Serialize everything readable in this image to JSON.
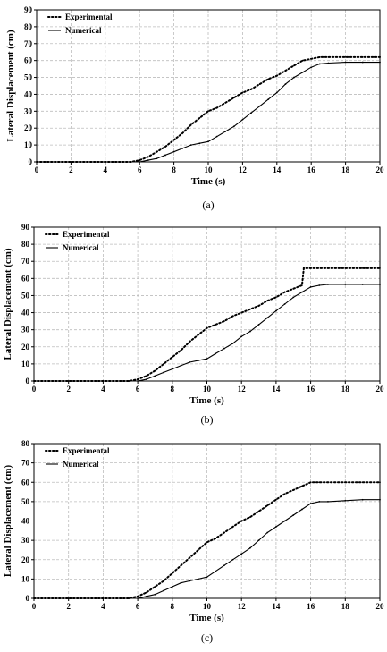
{
  "chart_data": [
    {
      "type": "line",
      "panel_label": "(a)",
      "xlabel": "Time (s)",
      "ylabel": "Lateral Displacement (cm)",
      "xlim": [
        0,
        20
      ],
      "ylim": [
        0,
        90
      ],
      "xticks": [
        0,
        2,
        4,
        6,
        8,
        10,
        12,
        14,
        16,
        18,
        20
      ],
      "yticks": [
        0,
        10,
        20,
        30,
        40,
        50,
        60,
        70,
        80,
        90
      ],
      "grid": true,
      "legend_position": "top-left",
      "series": [
        {
          "name": "Experimental",
          "style": "dotted",
          "x": [
            0,
            2,
            4,
            5.5,
            6,
            6.5,
            7,
            7.5,
            8,
            8.5,
            9,
            9.5,
            10,
            10.5,
            11,
            11.5,
            12,
            12.5,
            13,
            13.5,
            14,
            14.5,
            15,
            15.5,
            16,
            16.5,
            17,
            18,
            19,
            20
          ],
          "y": [
            0,
            0,
            0,
            0,
            1,
            3,
            6,
            9,
            13,
            17,
            22,
            26,
            30,
            32,
            35,
            38,
            41,
            43,
            46,
            49,
            51,
            54,
            57,
            60,
            61,
            62,
            62,
            62,
            62,
            62
          ]
        },
        {
          "name": "Numerical",
          "style": "solid",
          "x": [
            0,
            2,
            4,
            5.5,
            6,
            6.5,
            7,
            7.5,
            8,
            8.5,
            9,
            9.5,
            10,
            10.5,
            11,
            11.5,
            12,
            12.5,
            13,
            13.5,
            14,
            14.5,
            15,
            15.5,
            16,
            16.5,
            17,
            18,
            19,
            20
          ],
          "y": [
            0,
            0,
            0,
            0,
            0,
            1,
            2,
            4,
            6,
            8,
            10,
            11,
            12,
            15,
            18,
            21,
            25,
            29,
            33,
            37,
            41,
            46,
            50,
            53,
            56,
            58,
            58.5,
            59,
            59,
            59
          ]
        }
      ]
    },
    {
      "type": "line",
      "panel_label": "(b)",
      "xlabel": "Time (s)",
      "ylabel": "Lateral Displacement (cm)",
      "xlim": [
        0,
        20
      ],
      "ylim": [
        0,
        90
      ],
      "xticks": [
        0,
        2,
        4,
        6,
        8,
        10,
        12,
        14,
        16,
        18,
        20
      ],
      "yticks": [
        0,
        10,
        20,
        30,
        40,
        50,
        60,
        70,
        80,
        90
      ],
      "grid": true,
      "legend_position": "top-left",
      "series": [
        {
          "name": "Experimental",
          "style": "dotted",
          "x": [
            0,
            2,
            4,
            5.5,
            6,
            6.5,
            7,
            7.5,
            8,
            8.5,
            9,
            9.5,
            10,
            10.5,
            11,
            11.5,
            12,
            12.5,
            13,
            13.5,
            14,
            14.5,
            15,
            15.5,
            15.6,
            16,
            17,
            18,
            19,
            20
          ],
          "y": [
            0,
            0,
            0,
            0,
            1,
            3,
            6,
            10,
            14,
            18,
            23,
            27,
            31,
            33,
            35,
            38,
            40,
            42,
            44,
            47,
            49,
            52,
            54,
            56,
            66,
            66,
            66,
            66,
            66,
            66
          ]
        },
        {
          "name": "Numerical",
          "style": "solid",
          "x": [
            0,
            2,
            4,
            5.5,
            6,
            6.5,
            7,
            7.5,
            8,
            8.5,
            9,
            9.5,
            10,
            10.5,
            11,
            11.5,
            12,
            12.5,
            13,
            13.5,
            14,
            14.5,
            15,
            15.5,
            16,
            16.5,
            17,
            18,
            19,
            20
          ],
          "y": [
            0,
            0,
            0,
            0,
            0,
            1,
            3,
            5,
            7,
            9,
            11,
            12,
            13,
            16,
            19,
            22,
            26,
            29,
            33,
            37,
            41,
            45,
            49,
            52,
            55,
            56,
            56.5,
            56.5,
            56.5,
            56.5
          ]
        }
      ]
    },
    {
      "type": "line",
      "panel_label": "(c)",
      "xlabel": "Time (s)",
      "ylabel": "Lateral Displacement (cm)",
      "xlim": [
        0,
        20
      ],
      "ylim": [
        0,
        80
      ],
      "xticks": [
        0,
        2,
        4,
        6,
        8,
        10,
        12,
        14,
        16,
        18,
        20
      ],
      "yticks": [
        0,
        10,
        20,
        30,
        40,
        50,
        60,
        70,
        80
      ],
      "grid": true,
      "legend_position": "top-left",
      "series": [
        {
          "name": "Experimental",
          "style": "dotted",
          "x": [
            0,
            2,
            4,
            5.5,
            6,
            6.5,
            7,
            7.5,
            8,
            8.5,
            9,
            9.5,
            10,
            10.5,
            11,
            11.5,
            12,
            12.5,
            13,
            13.5,
            14,
            14.5,
            15,
            15.5,
            16,
            16.5,
            17,
            18,
            19,
            20
          ],
          "y": [
            0,
            0,
            0,
            0,
            1,
            3,
            6,
            9,
            13,
            17,
            21,
            25,
            29,
            31,
            34,
            37,
            40,
            42,
            45,
            48,
            51,
            54,
            56,
            58,
            60,
            60,
            60,
            60,
            60,
            60
          ]
        },
        {
          "name": "Numerical",
          "style": "solid",
          "x": [
            0,
            2,
            4,
            5.5,
            6,
            6.5,
            7,
            7.5,
            8,
            8.5,
            9,
            9.5,
            10,
            10.5,
            11,
            11.5,
            12,
            12.5,
            13,
            13.5,
            14,
            14.5,
            15,
            15.5,
            16,
            16.5,
            17,
            18,
            19,
            20
          ],
          "y": [
            0,
            0,
            0,
            0,
            0,
            1,
            2,
            4,
            6,
            8,
            9,
            10,
            11,
            14,
            17,
            20,
            23,
            26,
            30,
            34,
            37,
            40,
            43,
            46,
            49,
            50,
            50,
            50.5,
            51,
            51
          ]
        }
      ]
    }
  ]
}
